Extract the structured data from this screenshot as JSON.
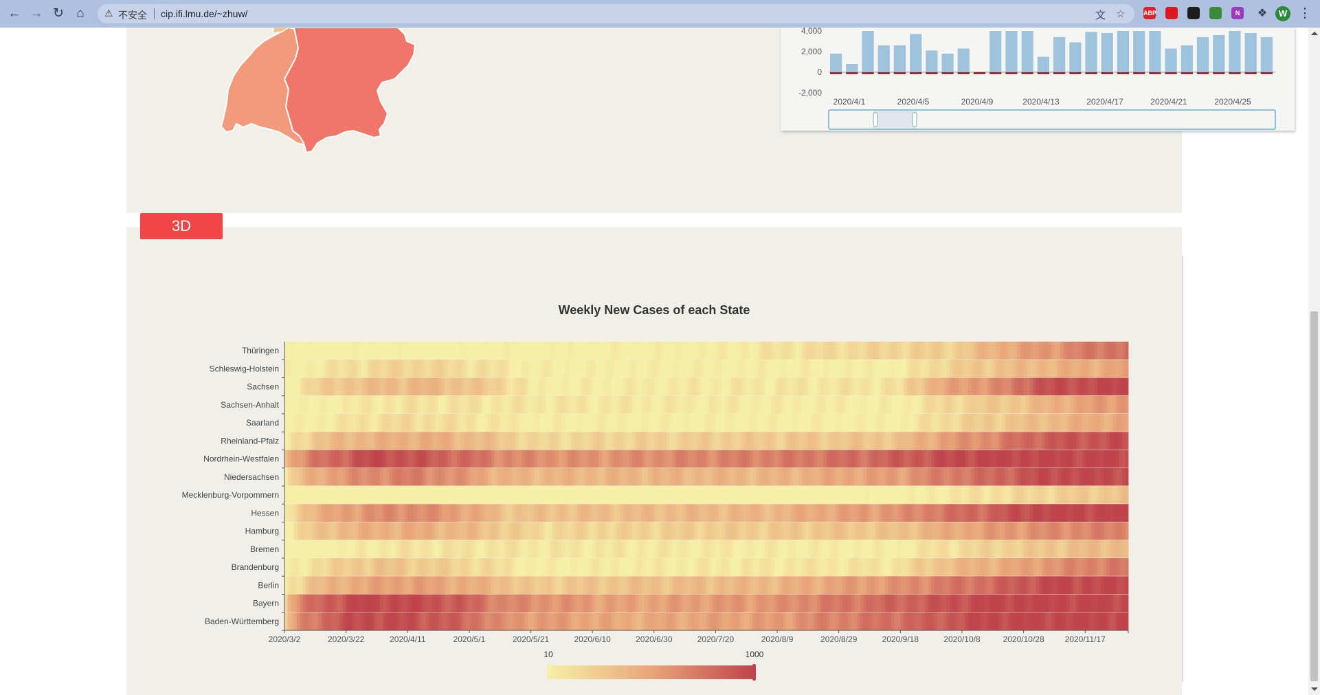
{
  "browser": {
    "insecure_label": "不安全",
    "url": "cip.ifi.lmu.de/~zhuw/",
    "profile_initial": "W",
    "extensions": [
      {
        "name": "ABP",
        "color": "#d9232e"
      },
      {
        "name": "",
        "color": "#e0161f"
      },
      {
        "name": "",
        "color": "#1d1d1d"
      },
      {
        "name": "",
        "color": "#3c8b3c"
      },
      {
        "name": "N",
        "color": "#9d3bbd"
      }
    ]
  },
  "top_bar_chart": {
    "y_ticks": [
      "4,000",
      "2,000",
      "0",
      "-2,000"
    ],
    "x_ticks": [
      "2020/4/1",
      "2020/4/5",
      "2020/4/9",
      "2020/4/13",
      "2020/4/17",
      "2020/4/21",
      "2020/4/25"
    ],
    "positive": [
      1800,
      800,
      4200,
      2600,
      2600,
      3700,
      2100,
      1800,
      2300,
      0,
      4600,
      4600,
      4600,
      1500,
      3400,
      2900,
      3900,
      3800,
      4500,
      4500,
      4500,
      2300,
      2600,
      3400,
      3600,
      4100,
      3800,
      3400
    ],
    "negative": [
      -150,
      -150,
      -200,
      -200,
      -150,
      -150,
      -150,
      -150,
      -150,
      -100,
      -100,
      -100,
      -100,
      -100,
      -100,
      -100,
      -100,
      -100,
      -80,
      -80,
      -80,
      -80,
      -80,
      -80,
      -80,
      -60,
      -60,
      -60
    ],
    "ylim": [
      -2000,
      4000
    ],
    "colors": {
      "positive": "#9fc3dc",
      "negative": "#9b2b31"
    }
  },
  "button_3d": {
    "label": "3D"
  },
  "chart_data": {
    "type": "heatmap",
    "title": "Weekly New Cases of each State",
    "rows": [
      "Thüringen",
      "Schleswig-Holstein",
      "Sachsen",
      "Sachsen-Anhalt",
      "Saarland",
      "Rheinland-Pfalz",
      "Nordrhein-Westfalen",
      "Niedersachsen",
      "Mecklenburg-Vorpommern",
      "Hessen",
      "Hamburg",
      "Bremen",
      "Brandenburg",
      "Berlin",
      "Bayern",
      "Baden-Württemberg"
    ],
    "x_ticks": [
      "2020/3/2",
      "2020/3/22",
      "2020/4/11",
      "2020/5/1",
      "2020/5/21",
      "2020/6/10",
      "2020/6/30",
      "2020/7/20",
      "2020/8/9",
      "2020/8/29",
      "2020/9/18",
      "2020/10/8",
      "2020/10/28",
      "2020/11/17"
    ],
    "x_range": [
      "2020/3/2",
      "2020/11/30"
    ],
    "row_profiles": {
      "Thüringen": [
        [
          0,
          8
        ],
        [
          60,
          8
        ],
        [
          140,
          10
        ],
        [
          220,
          30
        ],
        [
          250,
          150
        ],
        [
          274,
          400
        ]
      ],
      "Schleswig-Holstein": [
        [
          0,
          8
        ],
        [
          40,
          25
        ],
        [
          80,
          10
        ],
        [
          200,
          10
        ],
        [
          240,
          50
        ],
        [
          274,
          100
        ]
      ],
      "Sachsen": [
        [
          0,
          8
        ],
        [
          20,
          40
        ],
        [
          45,
          60
        ],
        [
          80,
          10
        ],
        [
          200,
          15
        ],
        [
          235,
          200
        ],
        [
          245,
          700
        ],
        [
          274,
          1000
        ]
      ],
      "Sachsen-Anhalt": [
        [
          0,
          8
        ],
        [
          40,
          15
        ],
        [
          200,
          10
        ],
        [
          240,
          40
        ],
        [
          274,
          150
        ]
      ],
      "Saarland": [
        [
          0,
          8
        ],
        [
          40,
          20
        ],
        [
          80,
          10
        ],
        [
          200,
          10
        ],
        [
          240,
          40
        ],
        [
          274,
          100
        ]
      ],
      "Rheinland-Pfalz": [
        [
          0,
          10
        ],
        [
          20,
          60
        ],
        [
          45,
          80
        ],
        [
          80,
          20
        ],
        [
          200,
          40
        ],
        [
          230,
          200
        ],
        [
          250,
          600
        ],
        [
          274,
          800
        ]
      ],
      "Nordrhein-Westfalen": [
        [
          0,
          50
        ],
        [
          15,
          400
        ],
        [
          30,
          900
        ],
        [
          45,
          600
        ],
        [
          70,
          200
        ],
        [
          100,
          150
        ],
        [
          130,
          200
        ],
        [
          160,
          250
        ],
        [
          190,
          400
        ],
        [
          210,
          700
        ],
        [
          225,
          1000
        ],
        [
          274,
          1000
        ]
      ],
      "Niedersachsen": [
        [
          0,
          10
        ],
        [
          20,
          150
        ],
        [
          40,
          250
        ],
        [
          70,
          60
        ],
        [
          160,
          60
        ],
        [
          200,
          120
        ],
        [
          230,
          400
        ],
        [
          250,
          900
        ],
        [
          274,
          900
        ]
      ],
      "Mecklenburg-Vorpommern": [
        [
          0,
          5
        ],
        [
          200,
          8
        ],
        [
          240,
          20
        ],
        [
          274,
          40
        ]
      ],
      "Hessen": [
        [
          0,
          10
        ],
        [
          20,
          120
        ],
        [
          40,
          200
        ],
        [
          70,
          40
        ],
        [
          160,
          60
        ],
        [
          200,
          150
        ],
        [
          230,
          500
        ],
        [
          245,
          1000
        ],
        [
          274,
          1000
        ]
      ],
      "Hamburg": [
        [
          0,
          10
        ],
        [
          20,
          60
        ],
        [
          40,
          80
        ],
        [
          80,
          20
        ],
        [
          200,
          40
        ],
        [
          240,
          150
        ],
        [
          274,
          250
        ]
      ],
      "Bremen": [
        [
          0,
          5
        ],
        [
          40,
          15
        ],
        [
          200,
          10
        ],
        [
          240,
          30
        ],
        [
          274,
          60
        ]
      ],
      "Brandenburg": [
        [
          0,
          8
        ],
        [
          30,
          40
        ],
        [
          80,
          10
        ],
        [
          200,
          15
        ],
        [
          240,
          100
        ],
        [
          274,
          300
        ]
      ],
      "Berlin": [
        [
          0,
          10
        ],
        [
          20,
          80
        ],
        [
          40,
          120
        ],
        [
          80,
          30
        ],
        [
          160,
          60
        ],
        [
          200,
          150
        ],
        [
          230,
          400
        ],
        [
          250,
          900
        ],
        [
          274,
          900
        ]
      ],
      "Bayern": [
        [
          0,
          20
        ],
        [
          15,
          600
        ],
        [
          25,
          1000
        ],
        [
          45,
          800
        ],
        [
          70,
          200
        ],
        [
          110,
          100
        ],
        [
          160,
          150
        ],
        [
          190,
          350
        ],
        [
          210,
          600
        ],
        [
          230,
          1000
        ],
        [
          274,
          1000
        ]
      ],
      "Baden-Württemberg": [
        [
          0,
          20
        ],
        [
          15,
          500
        ],
        [
          25,
          900
        ],
        [
          45,
          700
        ],
        [
          70,
          150
        ],
        [
          110,
          80
        ],
        [
          160,
          120
        ],
        [
          190,
          300
        ],
        [
          210,
          500
        ],
        [
          230,
          1000
        ],
        [
          274,
          1000
        ]
      ]
    },
    "visual_map": {
      "min_label": "10",
      "max_label": "1000",
      "min": 10,
      "max": 1000,
      "scale": "log",
      "colors": [
        "#f6efa6",
        "#e8a57a",
        "#bf444c"
      ]
    },
    "grid": false
  }
}
